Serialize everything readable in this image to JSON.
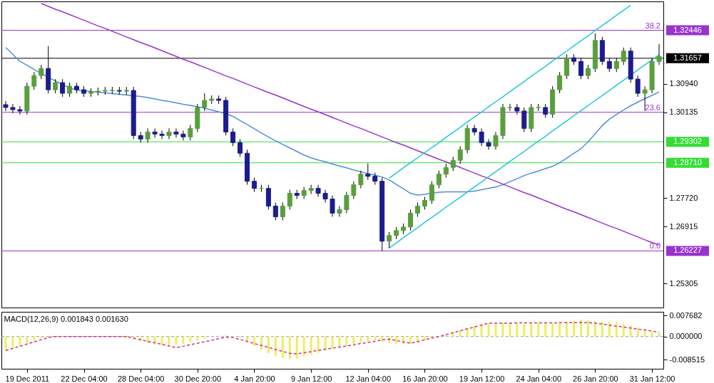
{
  "chart_data": [
    {
      "type": "candlestick",
      "categories": [
        null,
        null,
        null,
        null,
        null,
        null,
        null,
        null,
        null,
        null,
        null,
        null,
        null,
        null,
        null,
        null,
        null,
        null,
        null,
        null,
        null,
        null,
        null,
        null,
        null,
        null,
        null,
        null,
        null,
        null,
        null,
        null,
        null,
        null,
        null,
        null,
        null,
        null,
        null,
        null,
        null,
        null,
        null,
        null,
        null,
        null,
        null,
        null,
        null,
        null,
        null,
        null,
        null,
        null,
        null,
        null,
        null,
        null,
        null,
        null,
        null,
        null,
        null,
        null,
        null,
        null,
        null,
        null,
        null,
        null,
        null,
        null,
        null,
        null,
        null,
        null,
        null,
        null,
        null,
        null,
        null,
        null,
        null,
        null,
        null,
        null,
        null,
        null,
        null,
        null,
        null,
        null,
        null
      ],
      "ohlc": [
        [
          1.3035,
          1.3045,
          1.3017,
          1.3027
        ],
        [
          1.3027,
          1.3037,
          1.3011,
          1.3021
        ],
        [
          1.3021,
          1.3031,
          1.3007,
          1.3017
        ],
        [
          1.3017,
          1.3097,
          1.3007,
          1.3087
        ],
        [
          1.3087,
          1.3127,
          1.3077,
          1.3117
        ],
        [
          1.3117,
          1.3147,
          1.3107,
          1.3137
        ],
        [
          1.3137,
          1.32,
          1.3067,
          1.3077
        ],
        [
          1.3077,
          1.3107,
          1.3067,
          1.3097
        ],
        [
          1.3097,
          1.3107,
          1.3057,
          1.3067
        ],
        [
          1.3067,
          1.3097,
          1.3057,
          1.3087
        ],
        [
          1.3087,
          1.3097,
          1.3067,
          1.3077
        ],
        [
          1.3077,
          1.3087,
          1.3057,
          1.3067
        ],
        [
          1.3067,
          1.3081,
          1.3057,
          1.3071
        ],
        [
          1.3071,
          1.3083,
          1.3061,
          1.3073
        ],
        [
          1.3073,
          1.3085,
          1.3063,
          1.3075
        ],
        [
          1.3075,
          1.3085,
          1.3065,
          1.3075
        ],
        [
          1.3075,
          1.3085,
          1.3063,
          1.3073
        ],
        [
          1.3073,
          1.3085,
          1.3063,
          1.3075
        ],
        [
          1.3075,
          1.3085,
          1.2938,
          1.2948
        ],
        [
          1.2948,
          1.2958,
          1.2928,
          1.2938
        ],
        [
          1.2938,
          1.2968,
          1.2928,
          1.2958
        ],
        [
          1.2958,
          1.2968,
          1.2942,
          1.2952
        ],
        [
          1.2952,
          1.2962,
          1.2938,
          1.2948
        ],
        [
          1.2948,
          1.2968,
          1.2938,
          1.2958
        ],
        [
          1.2958,
          1.2968,
          1.2942,
          1.2952
        ],
        [
          1.2952,
          1.2962,
          1.2934,
          1.2944
        ],
        [
          1.2944,
          1.2978,
          1.2934,
          1.2968
        ],
        [
          1.2968,
          1.3037,
          1.2958,
          1.3027
        ],
        [
          1.3027,
          1.3067,
          1.3017,
          1.3047
        ],
        [
          1.3047,
          1.3061,
          1.3037,
          1.3051
        ],
        [
          1.3051,
          1.3061,
          1.3037,
          1.3047
        ],
        [
          1.3047,
          1.3057,
          1.2948,
          1.2958
        ],
        [
          1.2958,
          1.2968,
          1.2918,
          1.2928
        ],
        [
          1.2928,
          1.2938,
          1.2888,
          1.2898
        ],
        [
          1.2898,
          1.2908,
          1.2809,
          1.2819
        ],
        [
          1.2819,
          1.2829,
          1.2789,
          1.2799
        ],
        [
          1.2799,
          1.2809,
          1.2789,
          1.2799
        ],
        [
          1.2799,
          1.2809,
          1.2739,
          1.2749
        ],
        [
          1.2749,
          1.2759,
          1.2709,
          1.2719
        ],
        [
          1.2719,
          1.2759,
          1.2709,
          1.2749
        ],
        [
          1.2749,
          1.2795,
          1.2739,
          1.2785
        ],
        [
          1.2785,
          1.2795,
          1.2769,
          1.2779
        ],
        [
          1.2779,
          1.2803,
          1.2769,
          1.2793
        ],
        [
          1.2793,
          1.2809,
          1.2783,
          1.2799
        ],
        [
          1.2799,
          1.2809,
          1.2775,
          1.2785
        ],
        [
          1.2785,
          1.2795,
          1.2759,
          1.2769
        ],
        [
          1.2769,
          1.2779,
          1.2719,
          1.2729
        ],
        [
          1.2729,
          1.2749,
          1.2719,
          1.2739
        ],
        [
          1.2739,
          1.2789,
          1.2729,
          1.2779
        ],
        [
          1.2779,
          1.2819,
          1.2769,
          1.2809
        ],
        [
          1.2809,
          1.2849,
          1.2799,
          1.2839
        ],
        [
          1.2839,
          1.2869,
          1.2823,
          1.2833
        ],
        [
          1.2833,
          1.2843,
          1.2809,
          1.2819
        ],
        [
          1.2819,
          1.2829,
          1.2623,
          1.265
        ],
        [
          1.265,
          1.2676,
          1.263,
          1.2666
        ],
        [
          1.2666,
          1.269,
          1.2656,
          1.268
        ],
        [
          1.268,
          1.27,
          1.267,
          1.269
        ],
        [
          1.269,
          1.2739,
          1.268,
          1.2729
        ],
        [
          1.2729,
          1.2759,
          1.2719,
          1.2749
        ],
        [
          1.2749,
          1.2775,
          1.2739,
          1.2765
        ],
        [
          1.2765,
          1.2819,
          1.2755,
          1.2809
        ],
        [
          1.2809,
          1.2849,
          1.2799,
          1.2839
        ],
        [
          1.2839,
          1.2868,
          1.2829,
          1.2858
        ],
        [
          1.2858,
          1.2888,
          1.2848,
          1.2878
        ],
        [
          1.2878,
          1.2918,
          1.2868,
          1.2908
        ],
        [
          1.2908,
          1.2978,
          1.2898,
          1.2968
        ],
        [
          1.2968,
          1.2978,
          1.2948,
          1.2958
        ],
        [
          1.2958,
          1.2968,
          1.2918,
          1.2928
        ],
        [
          1.2928,
          1.2938,
          1.2908,
          1.2918
        ],
        [
          1.2918,
          1.2958,
          1.2908,
          1.2948
        ],
        [
          1.2948,
          1.3037,
          1.2938,
          1.3027
        ],
        [
          1.3027,
          1.3037,
          1.3017,
          1.3027
        ],
        [
          1.3027,
          1.3037,
          1.3007,
          1.3017
        ],
        [
          1.3017,
          1.3027,
          1.2958,
          1.2968
        ],
        [
          1.2968,
          1.3037,
          1.2958,
          1.3027
        ],
        [
          1.3027,
          1.3037,
          1.3017,
          1.3027
        ],
        [
          1.3027,
          1.3037,
          1.2998,
          1.3008
        ],
        [
          1.3008,
          1.3087,
          1.2998,
          1.3077
        ],
        [
          1.3077,
          1.3127,
          1.3067,
          1.3117
        ],
        [
          1.3117,
          1.3177,
          1.3107,
          1.3167
        ],
        [
          1.3167,
          1.3177,
          1.3147,
          1.3157
        ],
        [
          1.3157,
          1.3167,
          1.3107,
          1.3117
        ],
        [
          1.3117,
          1.3147,
          1.3107,
          1.3137
        ],
        [
          1.3137,
          1.3236,
          1.3127,
          1.3216
        ],
        [
          1.3216,
          1.3226,
          1.3147,
          1.3157
        ],
        [
          1.3157,
          1.3167,
          1.3127,
          1.3137
        ],
        [
          1.3137,
          1.3167,
          1.3127,
          1.3157
        ],
        [
          1.3157,
          1.3196,
          1.3147,
          1.3186
        ],
        [
          1.3186,
          1.3196,
          1.3097,
          1.3107
        ],
        [
          1.3107,
          1.3117,
          1.3057,
          1.3067
        ],
        [
          1.3067,
          1.3087,
          1.3017,
          1.3077
        ],
        [
          1.3077,
          1.3167,
          1.3067,
          1.3157
        ],
        [
          1.3157,
          1.3206,
          1.3147,
          1.3171
        ]
      ],
      "colors": [
        "#1c1c8e",
        "#1c1c8e",
        "#1c1c8e",
        "#5a9e3e",
        "#5a9e3e",
        "#5a9e3e",
        "#1c1c8e",
        "#5a9e3e",
        "#1c1c8e",
        "#5a9e3e",
        "#1c1c8e",
        "#1c1c8e",
        "#5a9e3e",
        "#5a9e3e",
        "#5a9e3e",
        "#5a9e3e",
        "#1c1c8e",
        "#5a9e3e",
        "#1c1c8e",
        "#1c1c8e",
        "#5a9e3e",
        "#1c1c8e",
        "#1c1c8e",
        "#5a9e3e",
        "#1c1c8e",
        "#1c1c8e",
        "#5a9e3e",
        "#5a9e3e",
        "#5a9e3e",
        "#5a9e3e",
        "#1c1c8e",
        "#1c1c8e",
        "#1c1c8e",
        "#1c1c8e",
        "#1c1c8e",
        "#1c1c8e",
        "#5a9e3e",
        "#1c1c8e",
        "#1c1c8e",
        "#5a9e3e",
        "#5a9e3e",
        "#1c1c8e",
        "#5a9e3e",
        "#5a9e3e",
        "#1c1c8e",
        "#1c1c8e",
        "#1c1c8e",
        "#5a9e3e",
        "#5a9e3e",
        "#5a9e3e",
        "#5a9e3e",
        "#1c1c8e",
        "#1c1c8e",
        "#1c1c8e",
        "#5a9e3e",
        "#5a9e3e",
        "#5a9e3e",
        "#5a9e3e",
        "#5a9e3e",
        "#5a9e3e",
        "#5a9e3e",
        "#5a9e3e",
        "#5a9e3e",
        "#5a9e3e",
        "#5a9e3e",
        "#5a9e3e",
        "#1c1c8e",
        "#1c1c8e",
        "#1c1c8e",
        "#5a9e3e",
        "#5a9e3e",
        "#5a9e3e",
        "#1c1c8e",
        "#1c1c8e",
        "#5a9e3e",
        "#5a9e3e",
        "#1c1c8e",
        "#5a9e3e",
        "#5a9e3e",
        "#5a9e3e",
        "#1c1c8e",
        "#1c1c8e",
        "#5a9e3e",
        "#5a9e3e",
        "#1c1c8e",
        "#1c1c8e",
        "#5a9e3e",
        "#5a9e3e",
        "#1c1c8e",
        "#1c1c8e",
        "#5a9e3e",
        "#5a9e3e",
        "#5a9e3e"
      ],
      "series": [
        {
          "type": "line",
          "color": "#4f8fd8",
          "values": [
            1.3196,
            1.3177,
            1.3157,
            1.3146,
            1.3134,
            1.3123,
            1.3112,
            1.3102,
            1.3092,
            1.3082,
            1.3076,
            1.3074,
            1.3072,
            1.307,
            1.3068,
            1.3066,
            1.3064,
            1.3062,
            1.306,
            1.3058,
            1.3055,
            1.3051,
            1.3047,
            1.3044,
            1.304,
            1.3036,
            1.3033,
            1.3029,
            1.3025,
            1.302,
            1.3015,
            1.301,
            1.3002,
            1.299,
            1.2979,
            1.2967,
            1.2955,
            1.2944,
            1.2933,
            1.2923,
            1.2913,
            1.2903,
            1.2893,
            1.2885,
            1.2879,
            1.2874,
            1.2868,
            1.2862,
            1.2857,
            1.2851,
            1.2846,
            1.2841,
            1.2836,
            1.2831,
            1.2823,
            1.281,
            1.2798,
            1.2785,
            1.278,
            1.2782,
            1.2785,
            1.2788,
            1.2789,
            1.2789,
            1.2789,
            1.2789,
            1.2791,
            1.2795,
            1.2799,
            1.2803,
            1.2809,
            1.2818,
            1.2826,
            1.2835,
            1.2842,
            1.2848,
            1.2855,
            1.2861,
            1.2871,
            1.2884,
            1.2898,
            1.2911,
            1.293,
            1.2953,
            1.2976,
            1.2994,
            1.3007,
            1.302,
            1.3032,
            1.3042,
            1.3052,
            1.3061,
            1.3071
          ]
        },
        {
          "type": "line",
          "color": "#9933cc",
          "values": [
            null,
            null,
            null,
            null,
            null,
            1.332,
            1.3312,
            1.3304,
            1.3297,
            1.3289,
            1.3281,
            1.3273,
            1.3265,
            1.3257,
            1.325,
            1.3242,
            1.3234,
            1.3226,
            1.3218,
            1.321,
            1.3203,
            1.3195,
            1.3187,
            1.3179,
            1.3171,
            1.3163,
            1.3156,
            1.3148,
            1.314,
            1.3132,
            1.3124,
            1.3116,
            1.3109,
            1.3101,
            1.3093,
            1.3085,
            1.3077,
            1.3069,
            1.3062,
            1.3054,
            1.3046,
            1.3038,
            1.303,
            1.3022,
            1.3015,
            1.3007,
            1.2999,
            1.2991,
            1.2983,
            1.2975,
            1.2968,
            1.296,
            1.2952,
            1.2944,
            1.2936,
            1.2928,
            1.2921,
            1.2913,
            1.2905,
            1.2897,
            1.2889,
            1.2881,
            1.2874,
            1.2866,
            1.2858,
            1.285,
            1.2842,
            1.2834,
            1.2827,
            1.2819,
            1.2811,
            1.2803,
            1.2795,
            1.2787,
            1.278,
            1.2772,
            1.2764,
            1.2756,
            1.2748,
            1.274,
            1.2733,
            1.2725,
            1.2717,
            1.2709,
            1.2701,
            1.2693,
            1.2686,
            1.2678,
            1.267,
            1.2662,
            1.2654,
            1.2646,
            1.2639
          ]
        },
        {
          "type": "line",
          "color": "#22c8d8",
          "values": [
            null,
            null,
            null,
            null,
            null,
            null,
            null,
            null,
            null,
            null,
            null,
            null,
            null,
            null,
            null,
            null,
            null,
            null,
            null,
            null,
            null,
            null,
            null,
            null,
            null,
            null,
            null,
            null,
            null,
            null,
            null,
            null,
            null,
            null,
            null,
            null,
            null,
            null,
            null,
            null,
            null,
            null,
            null,
            null,
            null,
            null,
            null,
            null,
            null,
            null,
            null,
            null,
            null,
            null,
            1.2828,
            1.2842,
            1.2857,
            1.2871,
            1.2885,
            1.29,
            1.2914,
            1.2928,
            1.2943,
            1.2957,
            1.2971,
            1.2986,
            1.3,
            1.3014,
            1.3029,
            1.3043,
            1.3057,
            1.3072,
            1.3086,
            1.31,
            1.3115,
            1.3129,
            1.3143,
            1.3158,
            1.3172,
            1.3186,
            1.3201,
            1.3215,
            1.3229,
            1.3244,
            1.3258,
            1.3272,
            1.3287,
            1.3301,
            1.3315,
            null,
            null,
            null,
            null
          ]
        },
        {
          "type": "line",
          "color": "#22c8d8",
          "values": [
            null,
            null,
            null,
            null,
            null,
            null,
            null,
            null,
            null,
            null,
            null,
            null,
            null,
            null,
            null,
            null,
            null,
            null,
            null,
            null,
            null,
            null,
            null,
            null,
            null,
            null,
            null,
            null,
            null,
            null,
            null,
            null,
            null,
            null,
            null,
            null,
            null,
            null,
            null,
            null,
            null,
            null,
            null,
            null,
            null,
            null,
            null,
            null,
            null,
            null,
            null,
            null,
            null,
            null,
            1.2631,
            1.2645,
            1.266,
            1.2674,
            1.2688,
            1.2703,
            1.2717,
            1.2731,
            1.2746,
            1.276,
            1.2774,
            1.2789,
            1.2803,
            1.2817,
            1.2832,
            1.2846,
            1.286,
            1.2875,
            1.2889,
            1.2903,
            1.2918,
            1.2932,
            1.2946,
            1.2961,
            1.2975,
            1.2989,
            1.3004,
            1.3018,
            1.3032,
            1.3047,
            1.3061,
            1.3075,
            1.309,
            1.3104,
            1.3118,
            1.3133,
            1.3147,
            1.3161,
            1.3176
          ]
        }
      ],
      "ylim": [
        1.2463,
        1.3326
      ],
      "yticks": [
        {
          "value": 1.25305,
          "label": "1.25305"
        },
        {
          "value": 1.26915,
          "label": "1.26915"
        },
        {
          "value": 1.2772,
          "label": "1.27720"
        },
        {
          "value": 1.30135,
          "label": "1.30135"
        },
        {
          "value": 1.3094,
          "label": "1.30940"
        }
      ],
      "tick_labels": "y",
      "ref_lines": [
        {
          "axis": "y",
          "value": 1.32446,
          "label": "1.32446",
          "color": "#9933cc"
        },
        {
          "axis": "y",
          "value": 1.31657,
          "label": "1.31657",
          "color": "#000000"
        },
        {
          "axis": "y",
          "value": 1.30135,
          "label": null,
          "color": "#9933cc"
        },
        {
          "axis": "y",
          "value": 1.29302,
          "label": "1.29302",
          "color": "#33dd33"
        },
        {
          "axis": "y",
          "value": 1.2871,
          "label": "1.28710",
          "color": "#33dd33"
        },
        {
          "axis": "y",
          "value": 1.26227,
          "label": "1.26227",
          "color": "#9933cc"
        }
      ],
      "annotations": [
        {
          "text": "38.2",
          "y": 1.32446
        },
        {
          "text": "23.6",
          "y": 1.30135
        },
        {
          "text": "0.0",
          "y": 1.26227
        }
      ]
    },
    {
      "type": "bar",
      "title": "MACD(12,26,9) 0.001843 0.001630",
      "categories": [
        null,
        null,
        null,
        "19 Dec 2011",
        null,
        null,
        null,
        null,
        null,
        null,
        null,
        "22 Dec 04:00",
        null,
        null,
        null,
        null,
        null,
        null,
        null,
        "28 Dec 04:00",
        null,
        null,
        null,
        null,
        null,
        null,
        null,
        "30 Dec 20:00",
        null,
        null,
        null,
        null,
        null,
        null,
        null,
        "4 Jan 20:00",
        null,
        null,
        null,
        null,
        null,
        null,
        null,
        "9 Jan 12:00",
        null,
        null,
        null,
        null,
        null,
        null,
        null,
        "12 Jan 04:00",
        null,
        null,
        null,
        null,
        null,
        null,
        null,
        "16 Jan 20:00",
        null,
        null,
        null,
        null,
        null,
        null,
        null,
        "19 Jan 12:00",
        null,
        null,
        null,
        null,
        null,
        null,
        null,
        "24 Jan 04:00",
        null,
        null,
        null,
        null,
        null,
        null,
        null,
        "26 Jan 20:00",
        null,
        null,
        null,
        null,
        null,
        null,
        null,
        "31 Jan 12:00",
        null
      ],
      "series": [
        {
          "color": "#f2ec5c",
          "values": [
            -0.0049,
            -0.0042,
            -0.0034,
            -0.0025,
            -0.0015,
            -0.0007,
            -0.0003,
            0,
            0.0002,
            0.0001,
            0,
            null,
            0,
            0.0001,
            0,
            null,
            0,
            -0.0005,
            -0.0012,
            -0.0018,
            -0.0024,
            -0.0029,
            -0.0032,
            -0.0033,
            -0.0031,
            -0.0027,
            -0.0021,
            -0.0014,
            -0.0007,
            null,
            0.0003,
            0.0004,
            0.0002,
            -0.0006,
            -0.002,
            -0.0035,
            -0.0049,
            -0.0061,
            -0.0071,
            -0.0078,
            -0.0082,
            -0.008,
            -0.0074,
            -0.0067,
            -0.006,
            -0.0052,
            -0.0046,
            -0.0041,
            -0.0035,
            -0.0028,
            -0.0022,
            -0.0018,
            -0.0016,
            -0.0019,
            -0.0024,
            -0.0027,
            -0.0028,
            -0.0026,
            -0.0022,
            -0.0015,
            -0.0008,
            0,
            0.0008,
            0.0016,
            0.0024,
            0.0032,
            0.004,
            0.0045,
            0.0048,
            0.005,
            0.005,
            0.0049,
            0.0049,
            0.0048,
            0.005,
            0.0051,
            0.005,
            0.005,
            0.0052,
            0.0054,
            0.0058,
            0.0062,
            0.006,
            0.0056,
            0.0055,
            0.0055,
            0.0052,
            0.0048,
            0.0042,
            0.0034,
            0.0026,
            0.0018,
            0.0012
          ]
        },
        {
          "type": "line",
          "color": "#cc3399",
          "line_style": "dashed",
          "values": [
            -0.0052,
            -0.0044,
            -0.0036,
            -0.0028,
            -0.002,
            -0.0012,
            -0.0004,
            0,
            0,
            0,
            0,
            0,
            0,
            0,
            0,
            0,
            0,
            0,
            -0.0006,
            -0.0012,
            -0.0018,
            -0.0023,
            -0.0029,
            -0.0035,
            -0.0041,
            -0.0036,
            -0.003,
            -0.0025,
            -0.0019,
            -0.0014,
            -0.0008,
            -0.0003,
            -0.0004,
            -0.0011,
            -0.0018,
            -0.0026,
            -0.0033,
            -0.004,
            -0.0048,
            -0.0055,
            -0.0062,
            -0.0064,
            -0.006,
            -0.0056,
            -0.0051,
            -0.0047,
            -0.0043,
            -0.0039,
            -0.0035,
            -0.0031,
            -0.0026,
            -0.0022,
            -0.0018,
            -0.0012,
            -0.001,
            -0.0015,
            -0.002,
            -0.0025,
            -0.0019,
            -0.0012,
            -0.0006,
            0,
            0.0007,
            0.0014,
            0.0021,
            0.0028,
            0.0035,
            0.0042,
            0.0049,
            0.0049,
            0.0049,
            0.0049,
            0.005,
            0.005,
            0.005,
            0.005,
            0.005,
            0.005,
            0.0051,
            0.0051,
            0.0051,
            0.0051,
            0.0051,
            0.0049,
            0.0046,
            0.0042,
            0.0038,
            0.0035,
            0.0031,
            0.0027,
            0.0024,
            0.002,
            0.0016
          ]
        }
      ],
      "ylim": [
        -0.0119,
        0.0091
      ],
      "yticks": [
        {
          "value": 0.007682,
          "label": "0.007682"
        },
        {
          "value": 0,
          "label": "0.000000"
        },
        {
          "value": -0.008515,
          "label": "-0.008515"
        }
      ],
      "ref_lines": [
        {
          "axis": "y",
          "value": 0,
          "color": "#999999",
          "line_style": "dashed"
        }
      ]
    }
  ]
}
